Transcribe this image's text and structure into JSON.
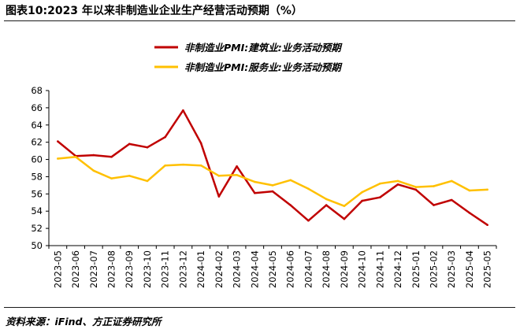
{
  "title": "图表10:2023 年以来非制造业企业生产经营活动预期（%）",
  "source": "资料来源：iFind、方正证券研究所",
  "chart_data": {
    "type": "line",
    "title": "图表10:2023 年以来非制造业企业生产经营活动预期（%）",
    "xlabel": "",
    "ylabel": "",
    "ylim": [
      50,
      68
    ],
    "yticks": [
      50,
      52,
      54,
      56,
      58,
      60,
      62,
      64,
      66,
      68
    ],
    "grid": false,
    "legend_position": "top-center",
    "categories": [
      "2023-05",
      "2023-06",
      "2023-07",
      "2023-08",
      "2023-09",
      "2023-10",
      "2023-11",
      "2023-12",
      "2024-01",
      "2024-02",
      "2024-03",
      "2024-04",
      "2024-05",
      "2024-06",
      "2024-07",
      "2024-08",
      "2024-09",
      "2024-10",
      "2024-11",
      "2024-12",
      "2025-01",
      "2025-02",
      "2025-03",
      "2025-04",
      "2025-05"
    ],
    "series": [
      {
        "name": "非制造业PMI:建筑业:业务活动预期",
        "color": "#C00000",
        "values": [
          62.1,
          60.4,
          60.5,
          60.3,
          61.8,
          61.4,
          62.6,
          65.7,
          61.9,
          55.7,
          59.2,
          56.1,
          56.3,
          54.7,
          52.9,
          54.7,
          53.1,
          55.2,
          55.6,
          57.1,
          56.5,
          54.7,
          55.3,
          53.8,
          52.4
        ]
      },
      {
        "name": "非制造业PMI:服务业:业务活动预期",
        "color": "#FFC000",
        "values": [
          60.1,
          60.3,
          58.7,
          57.8,
          58.1,
          57.5,
          59.3,
          59.4,
          59.3,
          58.1,
          58.2,
          57.4,
          57.0,
          57.6,
          56.6,
          55.4,
          54.6,
          56.2,
          57.2,
          57.5,
          56.8,
          56.9,
          57.5,
          56.4,
          56.5
        ]
      }
    ]
  }
}
